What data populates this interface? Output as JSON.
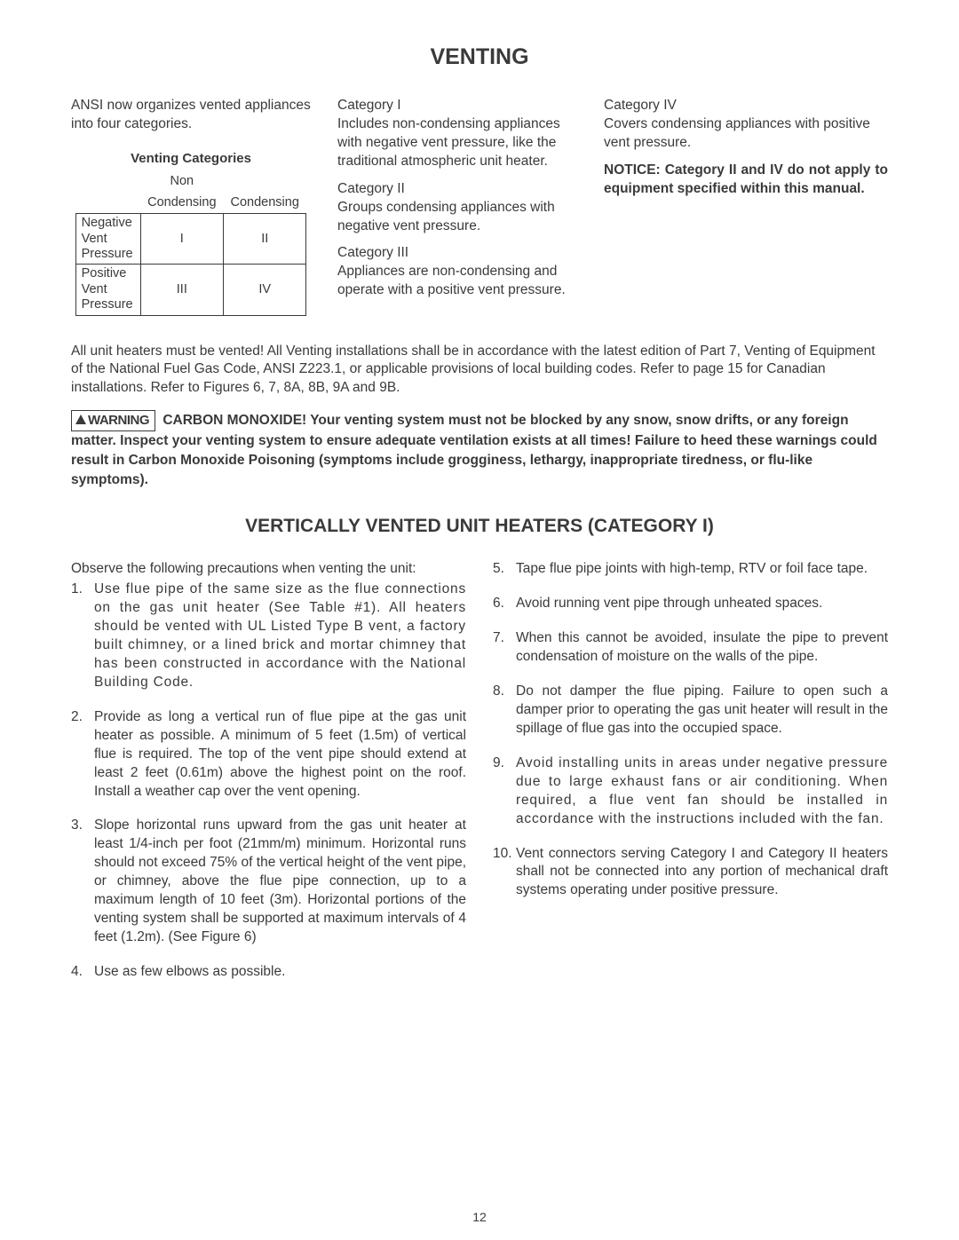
{
  "page": {
    "title": "VENTING",
    "number": "12"
  },
  "intro": "ANSI now organizes vented appliances into four categories.",
  "table": {
    "title": "Venting Categories",
    "col_top": "Non",
    "col1": "Condensing",
    "col2": "Condensing",
    "rows": [
      {
        "label_lines": [
          "Negative",
          "Vent",
          "Pressure"
        ],
        "c1": "I",
        "c2": "II"
      },
      {
        "label_lines": [
          "Positive",
          "Vent",
          "Pressure"
        ],
        "c1": "III",
        "c2": "IV"
      }
    ]
  },
  "categories": [
    {
      "name": "Category I",
      "text": "Includes non-condensing appliances with negative vent pressure, like the traditional atmospheric unit heater."
    },
    {
      "name": "Category II",
      "text": "Groups condensing appliances with negative vent pressure."
    },
    {
      "name": "Category III",
      "text": "Appliances are non-condensing and operate with a positive vent pressure."
    }
  ],
  "cat4": {
    "name": "Category IV",
    "text": "Covers condensing appliances with positive vent pressure."
  },
  "notice": "NOTICE: Category II and IV do not apply to equipment specified within this manual.",
  "main_para": "All unit heaters must be vented! All Venting installations shall be in accordance with the latest edition of Part 7, Venting of Equipment of the National Fuel Gas Code, ANSI Z223.1, or applicable provisions of local building codes. Refer to page 15 for Canadian installations. Refer to Figures 6, 7, 8A, 8B, 9A and 9B.",
  "warning": {
    "badge": "WARNING",
    "text": "CARBON MONOXIDE! Your venting system must not be blocked by any snow, snow drifts, or any foreign matter. Inspect your venting system to ensure adequate ventilation exists at all times! Failure to heed these warnings could result in Carbon Monoxide Poisoning (symptoms include grogginess, lethargy, inappropriate tiredness, or flu-like symptoms)."
  },
  "section2": {
    "heading": "VERTICALLY VENTED UNIT HEATERS (CATEGORY I)",
    "lead": "Observe the following precautions when venting the unit:",
    "items_left": [
      "Use flue pipe of the same size as the flue connections on the gas unit heater (See Table #1). All heaters should be vented with UL Listed Type B vent, a factory built chimney, or a lined brick and mortar chimney that has been constructed in accordance with the National Building Code.",
      "Provide as long a vertical run of flue pipe at the gas unit heater as possible. A minimum of 5 feet (1.5m) of vertical flue is required. The top of the vent pipe should extend at least 2 feet (0.61m) above the highest point on the roof. Install a weather cap over the vent opening.",
      "Slope horizontal runs upward from the gas unit heater at least 1/4-inch per foot (21mm/m) minimum. Horizontal runs should not exceed 75% of the vertical height of the vent pipe, or chimney, above the flue pipe connection, up to a maximum length of 10 feet (3m). Horizontal portions of the venting system shall be supported at maximum intervals of 4 feet (1.2m). (See Figure 6)",
      "Use as few elbows as possible."
    ],
    "items_right": [
      "Tape flue pipe joints with high-temp, RTV or foil face tape.",
      "Avoid running vent pipe through unheated spaces.",
      "When this cannot be avoided, insulate the pipe to prevent condensation of moisture on the walls of the pipe.",
      "Do not damper the flue piping. Failure to open such a damper prior to operating the gas unit heater will result in the spillage of flue gas into the occupied space.",
      "Avoid installing units in areas under negative pressure due to large exhaust fans or air conditioning. When required, a flue vent fan should be installed in accordance with the instructions included with the fan.",
      "Vent connectors serving Category I and Category II heaters shall not be connected into any portion of mechanical draft systems operating under positive pressure."
    ]
  }
}
